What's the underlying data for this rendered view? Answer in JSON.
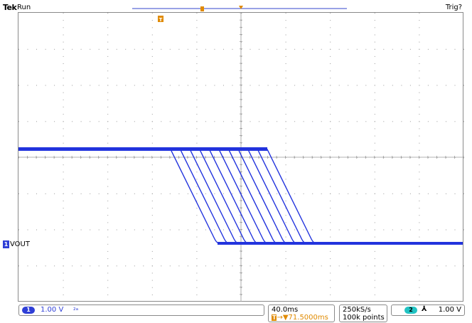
{
  "status": {
    "brand": "Tek",
    "state": "Run",
    "trigger_state": "Trig?"
  },
  "channel1": {
    "number": "1",
    "name": "VOUT",
    "scale": "1.00 V",
    "bandwidth_icon": "bw-limit-icon",
    "color": "#2f3fd6"
  },
  "timebase": {
    "per_div": "40.0ms",
    "position_prefix": "T",
    "position": "→▼71.5000ms",
    "color": "#e08a00"
  },
  "acquisition": {
    "sample_rate": "250kS/s",
    "record_length": "100k points"
  },
  "trigger": {
    "source": "2",
    "slope_symbol": "⅄",
    "level": "1.00 V",
    "source_color": "#22c3c3"
  },
  "marker_t": "T",
  "colors": {
    "trace": "#2233dd",
    "grid": "#9a9a9a",
    "trigger_marker": "#e08a00",
    "record_bar": "#3344cc"
  }
}
